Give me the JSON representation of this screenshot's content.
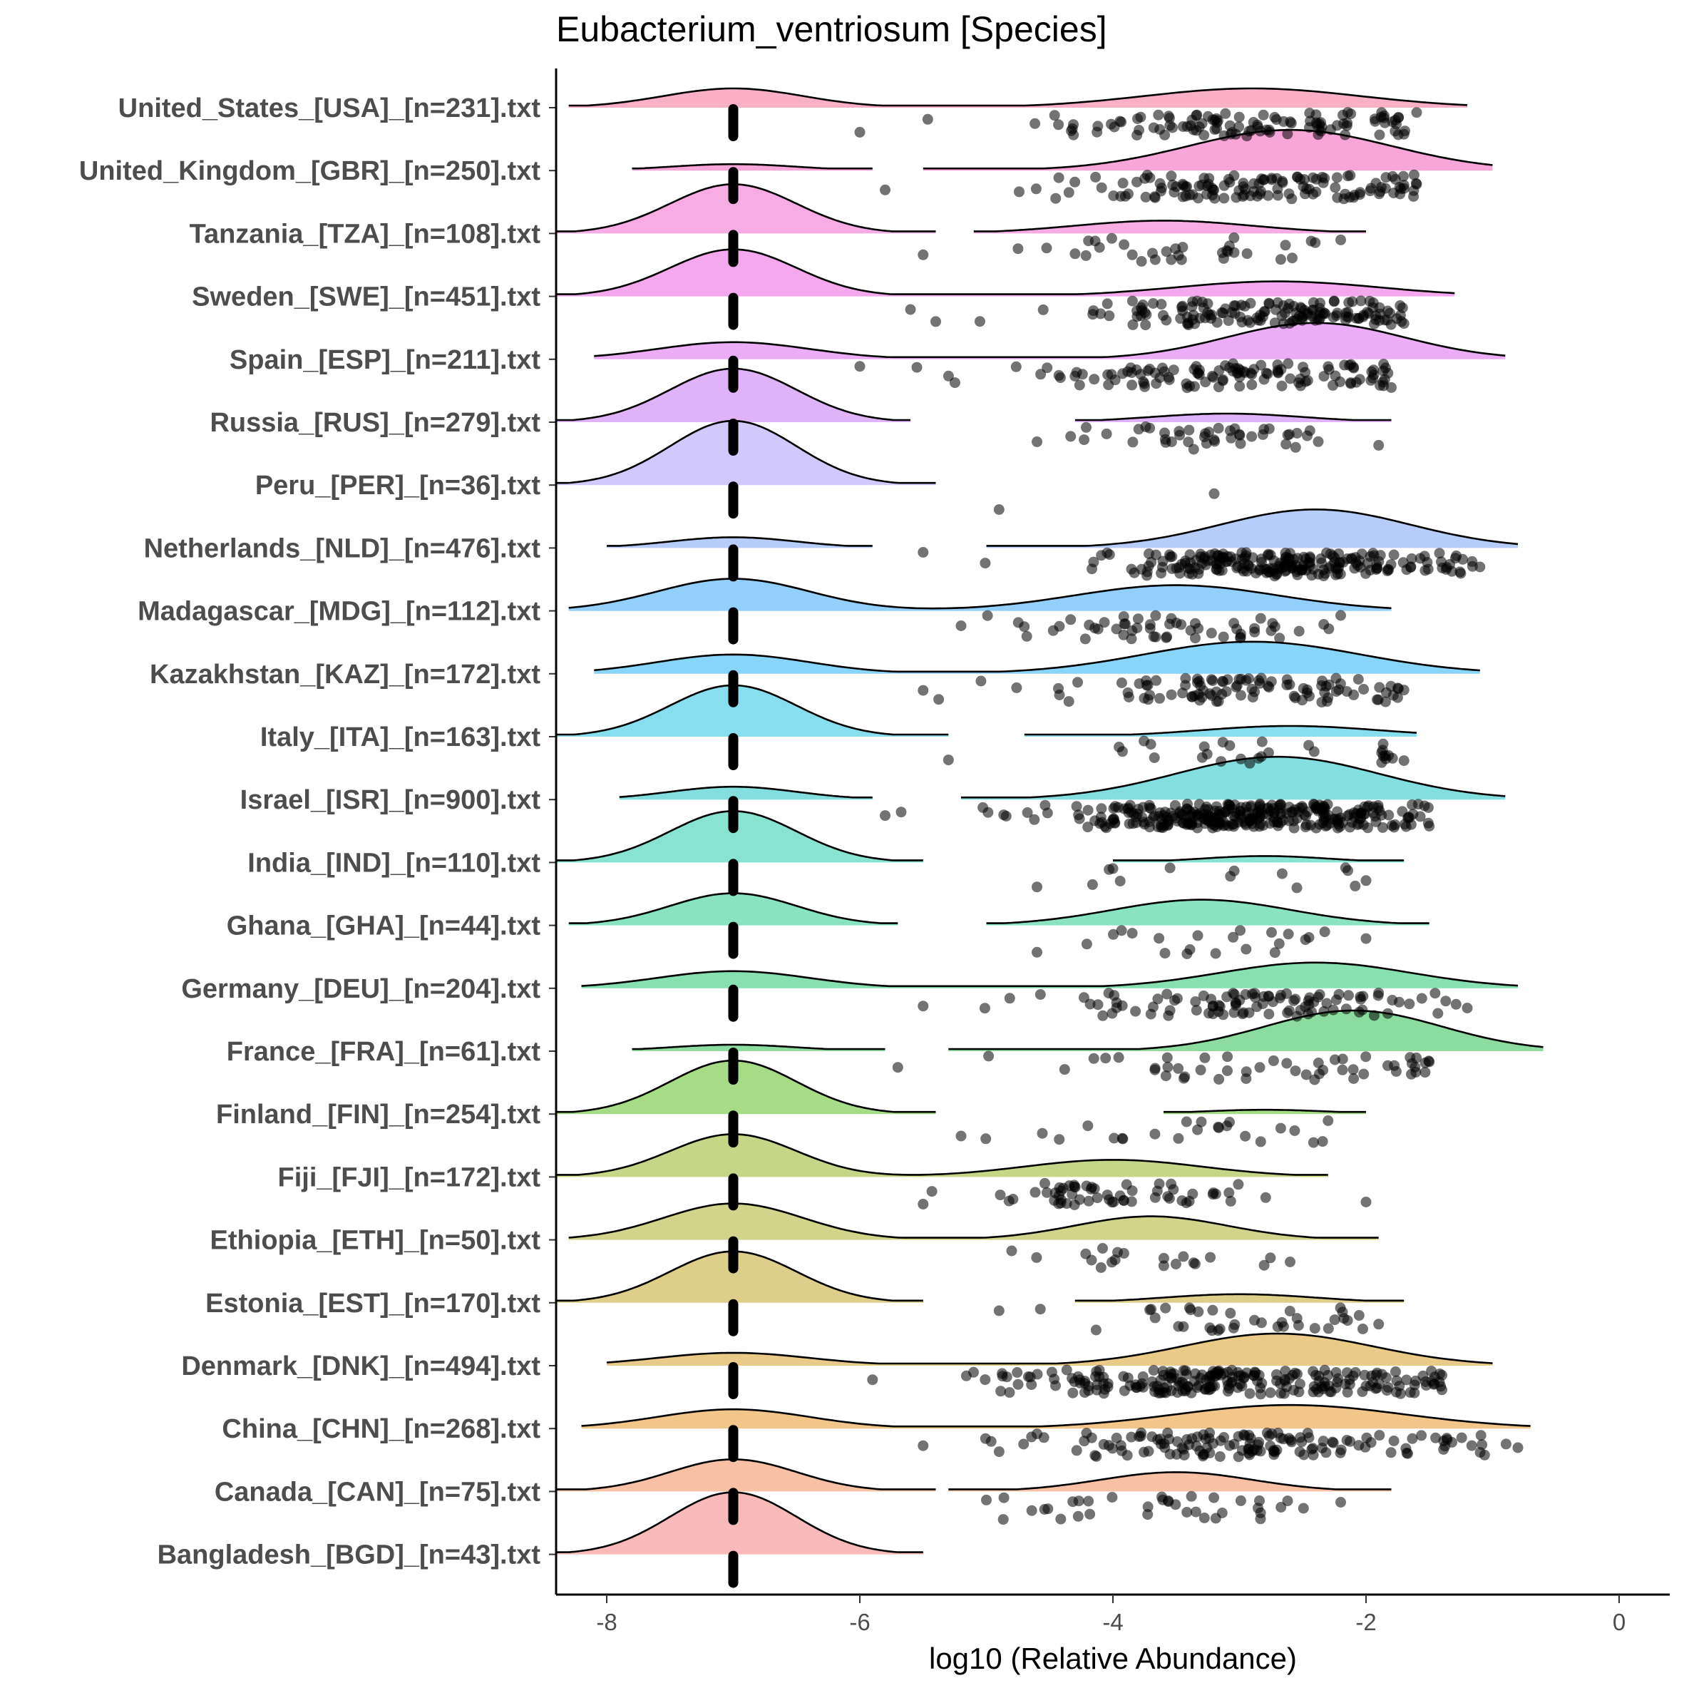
{
  "chart_data": {
    "type": "raincloud",
    "title": "Eubacterium_ventriosum [Species]",
    "xlabel": "log10 (Relative Abundance)",
    "ylabel": "",
    "xlim": [
      -8.4,
      0.4
    ],
    "x_ticks": [
      -8,
      -6,
      -4,
      -2,
      0
    ],
    "x_tick_labels": [
      "-8",
      "-6",
      "-4",
      "-2",
      "0"
    ],
    "zero_marker": -7,
    "grid": false,
    "legend": "none",
    "point_color": "#000000",
    "groups": [
      {
        "label": "United_States_[USA]_[n=231].txt",
        "color": "#F8A7C0",
        "clouds": [
          {
            "min": -8.3,
            "max": -1.2,
            "mode": -7.0,
            "sd": 0.55,
            "h": 0.45
          },
          {
            "min": -8.3,
            "max": -1.2,
            "mode": -2.9,
            "sd": 0.85,
            "h": 0.45
          }
        ],
        "zero_fraction": 0.15,
        "points": [
          {
            "min": -6.0,
            "max": -1.6,
            "mean": -3.0,
            "sd": 0.9,
            "count": 110
          }
        ]
      },
      {
        "label": "United_Kingdom_[GBR]_[n=250].txt",
        "color": "#F79BD3",
        "clouds": [
          {
            "min": -7.8,
            "max": -5.9,
            "mode": -7.0,
            "sd": 0.5,
            "h": 0.15
          },
          {
            "min": -5.5,
            "max": -1.0,
            "mode": -2.6,
            "sd": 0.8,
            "h": 0.95
          }
        ],
        "zero_fraction": 0.08,
        "points": [
          {
            "min": -5.8,
            "max": -1.6,
            "mean": -2.9,
            "sd": 0.75,
            "count": 130
          }
        ]
      },
      {
        "label": "Tanzania_[TZA]_[n=108].txt",
        "color": "#F6A3E0",
        "clouds": [
          {
            "min": -8.4,
            "max": -5.4,
            "mode": -7.0,
            "sd": 0.5,
            "h": 1.15
          },
          {
            "min": -5.1,
            "max": -2.0,
            "mode": -3.6,
            "sd": 0.7,
            "h": 0.3
          }
        ],
        "zero_fraction": 0.7,
        "points": [
          {
            "min": -5.5,
            "max": -2.2,
            "mean": -3.5,
            "sd": 0.6,
            "count": 34
          }
        ]
      },
      {
        "label": "Sweden_[SWE]_[n=451].txt",
        "color": "#F3A0EC",
        "clouds": [
          {
            "min": -8.4,
            "max": -1.3,
            "mode": -7.0,
            "sd": 0.5,
            "h": 1.1
          },
          {
            "min": -8.4,
            "max": -1.3,
            "mode": -2.7,
            "sd": 0.8,
            "h": 0.35
          }
        ],
        "zero_fraction": 0.6,
        "points": [
          {
            "min": -5.6,
            "max": -1.7,
            "mean": -2.8,
            "sd": 0.8,
            "count": 150
          }
        ]
      },
      {
        "label": "Spain_[ESP]_[n=211].txt",
        "color": "#E8A4F5",
        "clouds": [
          {
            "min": -8.1,
            "max": -0.9,
            "mode": -7.0,
            "sd": 0.6,
            "h": 0.4
          },
          {
            "min": -8.1,
            "max": -0.9,
            "mode": -2.4,
            "sd": 0.7,
            "h": 0.85
          }
        ],
        "zero_fraction": 0.12,
        "points": [
          {
            "min": -6.0,
            "max": -1.8,
            "mean": -2.9,
            "sd": 0.9,
            "count": 120
          }
        ]
      },
      {
        "label": "Russia_[RUS]_[n=279].txt",
        "color": "#DDAAF6",
        "clouds": [
          {
            "min": -8.4,
            "max": -5.6,
            "mode": -7.0,
            "sd": 0.5,
            "h": 1.25
          },
          {
            "min": -4.3,
            "max": -1.8,
            "mode": -3.1,
            "sd": 0.6,
            "h": 0.2
          }
        ],
        "zero_fraction": 0.85,
        "points": [
          {
            "min": -4.6,
            "max": -1.9,
            "mean": -3.1,
            "sd": 0.5,
            "count": 44
          }
        ]
      },
      {
        "label": "Peru_[PER]_[n=36].txt",
        "color": "#CCC3FB",
        "clouds": [
          {
            "min": -8.4,
            "max": -5.4,
            "mode": -7.0,
            "sd": 0.5,
            "h": 1.5
          }
        ],
        "zero_fraction": 0.95,
        "points": [
          {
            "min": -4.9,
            "max": -3.2,
            "mean": -4.0,
            "sd": 0.8,
            "count": 2
          }
        ]
      },
      {
        "label": "Netherlands_[NLD]_[n=476].txt",
        "color": "#AEC7F8",
        "clouds": [
          {
            "min": -8.0,
            "max": -5.9,
            "mode": -7.0,
            "sd": 0.5,
            "h": 0.25
          },
          {
            "min": -5.0,
            "max": -0.8,
            "mode": -2.4,
            "sd": 0.75,
            "h": 0.9
          }
        ],
        "zero_fraction": 0.1,
        "points": [
          {
            "min": -5.5,
            "max": -1.1,
            "mean": -2.6,
            "sd": 0.75,
            "count": 220
          }
        ]
      },
      {
        "label": "Madagascar_[MDG]_[n=112].txt",
        "color": "#86CAF9",
        "clouds": [
          {
            "min": -8.3,
            "max": -1.8,
            "mode": -7.0,
            "sd": 0.6,
            "h": 0.75
          },
          {
            "min": -8.3,
            "max": -1.8,
            "mode": -3.5,
            "sd": 0.8,
            "h": 0.6
          }
        ],
        "zero_fraction": 0.45,
        "points": [
          {
            "min": -5.2,
            "max": -2.2,
            "mean": -3.5,
            "sd": 0.7,
            "count": 55
          }
        ]
      },
      {
        "label": "Kazakhstan_[KAZ]_[n=172].txt",
        "color": "#7AD2F8",
        "clouds": [
          {
            "min": -8.1,
            "max": -1.1,
            "mode": -7.0,
            "sd": 0.6,
            "h": 0.45
          },
          {
            "min": -8.1,
            "max": -1.1,
            "mode": -2.9,
            "sd": 0.85,
            "h": 0.75
          }
        ],
        "zero_fraction": 0.3,
        "points": [
          {
            "min": -5.5,
            "max": -1.7,
            "mean": -3.1,
            "sd": 0.8,
            "count": 100
          }
        ]
      },
      {
        "label": "Italy_[ITA]_[n=163].txt",
        "color": "#79DAEC",
        "clouds": [
          {
            "min": -8.4,
            "max": -5.3,
            "mode": -7.0,
            "sd": 0.5,
            "h": 1.2
          },
          {
            "min": -4.7,
            "max": -1.6,
            "mode": -2.6,
            "sd": 0.7,
            "h": 0.25
          }
        ],
        "zero_fraction": 0.8,
        "points": [
          {
            "min": -5.3,
            "max": -1.7,
            "mean": -2.9,
            "sd": 0.8,
            "count": 30
          }
        ]
      },
      {
        "label": "Israel_[ISR]_[n=900].txt",
        "color": "#76DCDC",
        "clouds": [
          {
            "min": -7.9,
            "max": -5.9,
            "mode": -7.0,
            "sd": 0.5,
            "h": 0.3
          },
          {
            "min": -5.2,
            "max": -0.9,
            "mode": -2.7,
            "sd": 0.8,
            "h": 1.0
          }
        ],
        "zero_fraction": 0.1,
        "points": [
          {
            "min": -5.8,
            "max": -1.5,
            "mean": -3.0,
            "sd": 0.8,
            "count": 320
          }
        ]
      },
      {
        "label": "India_[IND]_[n=110].txt",
        "color": "#7BE0CC",
        "clouds": [
          {
            "min": -8.4,
            "max": -5.5,
            "mode": -7.0,
            "sd": 0.5,
            "h": 1.2
          },
          {
            "min": -4.0,
            "max": -1.7,
            "mode": -2.8,
            "sd": 0.5,
            "h": 0.15
          }
        ],
        "zero_fraction": 0.85,
        "points": [
          {
            "min": -4.6,
            "max": -2.0,
            "mean": -3.0,
            "sd": 0.6,
            "count": 14
          }
        ]
      },
      {
        "label": "Ghana_[GHA]_[n=44].txt",
        "color": "#7CE0BA",
        "clouds": [
          {
            "min": -8.3,
            "max": -5.7,
            "mode": -7.0,
            "sd": 0.5,
            "h": 0.75
          },
          {
            "min": -5.0,
            "max": -1.5,
            "mode": -3.3,
            "sd": 0.7,
            "h": 0.6
          }
        ],
        "zero_fraction": 0.45,
        "points": [
          {
            "min": -4.6,
            "max": -2.0,
            "mean": -3.3,
            "sd": 0.6,
            "count": 22
          }
        ]
      },
      {
        "label": "Germany_[DEU]_[n=204].txt",
        "color": "#79DDA8",
        "clouds": [
          {
            "min": -8.2,
            "max": -0.8,
            "mode": -7.0,
            "sd": 0.6,
            "h": 0.4
          },
          {
            "min": -8.2,
            "max": -0.8,
            "mode": -2.4,
            "sd": 0.75,
            "h": 0.6
          }
        ],
        "zero_fraction": 0.2,
        "points": [
          {
            "min": -5.5,
            "max": -1.2,
            "mean": -2.8,
            "sd": 0.8,
            "count": 100
          }
        ]
      },
      {
        "label": "France_[FRA]_[n=61].txt",
        "color": "#7ED894",
        "clouds": [
          {
            "min": -7.8,
            "max": -5.8,
            "mode": -7.0,
            "sd": 0.5,
            "h": 0.15
          },
          {
            "min": -5.3,
            "max": -0.6,
            "mode": -2.1,
            "sd": 0.7,
            "h": 0.95
          }
        ],
        "zero_fraction": 0.05,
        "points": [
          {
            "min": -5.7,
            "max": -1.5,
            "mean": -2.7,
            "sd": 0.8,
            "count": 50
          }
        ]
      },
      {
        "label": "Finland_[FIN]_[n=254].txt",
        "color": "#9DD87A",
        "clouds": [
          {
            "min": -8.4,
            "max": -5.4,
            "mode": -7.0,
            "sd": 0.5,
            "h": 1.25
          },
          {
            "min": -3.6,
            "max": -2.0,
            "mode": -2.8,
            "sd": 0.5,
            "h": 0.1
          }
        ],
        "zero_fraction": 0.9,
        "points": [
          {
            "min": -5.2,
            "max": -2.3,
            "mean": -3.3,
            "sd": 0.7,
            "count": 24
          }
        ]
      },
      {
        "label": "Fiji_[FJI]_[n=172].txt",
        "color": "#BFD27A",
        "clouds": [
          {
            "min": -8.4,
            "max": -2.3,
            "mode": -7.0,
            "sd": 0.5,
            "h": 1.0
          },
          {
            "min": -8.4,
            "max": -2.3,
            "mode": -4.0,
            "sd": 0.7,
            "h": 0.4
          }
        ],
        "zero_fraction": 0.65,
        "points": [
          {
            "min": -5.5,
            "max": -2.0,
            "mean": -4.0,
            "sd": 0.6,
            "count": 60
          }
        ]
      },
      {
        "label": "Ethiopia_[ETH]_[n=50].txt",
        "color": "#CCCF7D",
        "clouds": [
          {
            "min": -8.3,
            "max": -1.9,
            "mode": -7.0,
            "sd": 0.55,
            "h": 0.85
          },
          {
            "min": -8.3,
            "max": -1.9,
            "mode": -3.7,
            "sd": 0.6,
            "h": 0.55
          }
        ],
        "zero_fraction": 0.55,
        "points": [
          {
            "min": -4.8,
            "max": -2.6,
            "mean": -3.7,
            "sd": 0.5,
            "count": 20
          }
        ]
      },
      {
        "label": "Estonia_[EST]_[n=170].txt",
        "color": "#D9C97C",
        "clouds": [
          {
            "min": -8.4,
            "max": -5.5,
            "mode": -7.0,
            "sd": 0.5,
            "h": 1.2
          },
          {
            "min": -4.3,
            "max": -1.7,
            "mode": -3.0,
            "sd": 0.6,
            "h": 0.2
          }
        ],
        "zero_fraction": 0.85,
        "points": [
          {
            "min": -4.9,
            "max": -1.9,
            "mean": -2.9,
            "sd": 0.6,
            "count": 38
          }
        ]
      },
      {
        "label": "Denmark_[DNK]_[n=494].txt",
        "color": "#E7C57A",
        "clouds": [
          {
            "min": -8.0,
            "max": -1.0,
            "mode": -7.0,
            "sd": 0.6,
            "h": 0.3
          },
          {
            "min": -8.0,
            "max": -1.0,
            "mode": -2.7,
            "sd": 0.75,
            "h": 0.75
          }
        ],
        "zero_fraction": 0.15,
        "points": [
          {
            "min": -5.9,
            "max": -1.4,
            "mean": -3.0,
            "sd": 0.9,
            "count": 230
          }
        ]
      },
      {
        "label": "China_[CHN]_[n=268].txt",
        "color": "#F1C07C",
        "clouds": [
          {
            "min": -8.2,
            "max": -0.7,
            "mode": -7.0,
            "sd": 0.6,
            "h": 0.45
          },
          {
            "min": -8.2,
            "max": -0.7,
            "mode": -2.6,
            "sd": 0.9,
            "h": 0.55
          }
        ],
        "zero_fraction": 0.3,
        "points": [
          {
            "min": -5.5,
            "max": -0.8,
            "mean": -2.9,
            "sd": 0.9,
            "count": 140
          }
        ]
      },
      {
        "label": "Canada_[CAN]_[n=75].txt",
        "color": "#F7B99B",
        "clouds": [
          {
            "min": -8.4,
            "max": -5.4,
            "mode": -7.0,
            "sd": 0.5,
            "h": 0.75
          },
          {
            "min": -5.3,
            "max": -1.8,
            "mode": -3.5,
            "sd": 0.6,
            "h": 0.45
          }
        ],
        "zero_fraction": 0.5,
        "points": [
          {
            "min": -5.0,
            "max": -2.2,
            "mean": -3.5,
            "sd": 0.6,
            "count": 36
          }
        ]
      },
      {
        "label": "Bangladesh_[BGD]_[n=43].txt",
        "color": "#F8B2B2",
        "clouds": [
          {
            "min": -8.4,
            "max": -5.5,
            "mode": -7.0,
            "sd": 0.5,
            "h": 1.45
          }
        ],
        "zero_fraction": 1.0,
        "points": []
      }
    ]
  }
}
